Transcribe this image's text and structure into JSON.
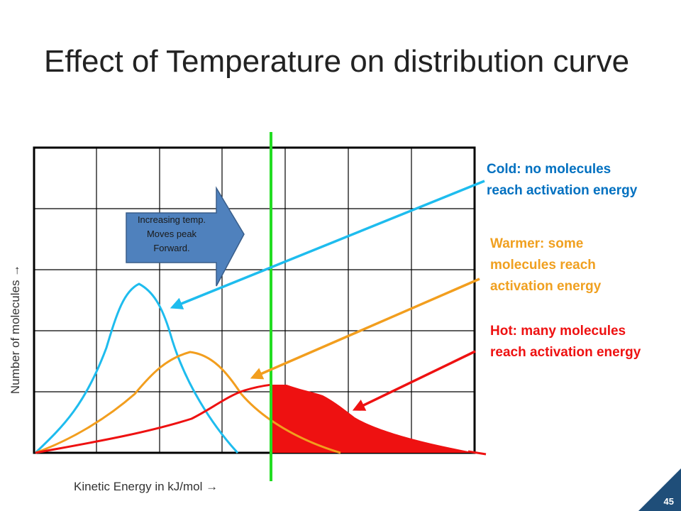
{
  "title": "Effect of Temperature on distribution curve",
  "axes": {
    "ylabel": "Number of molecules →",
    "xlabel": "Kinetic Energy in kJ/mol →"
  },
  "annotation": {
    "lines": [
      "Increasing temp.",
      "Moves peak",
      "Forward."
    ]
  },
  "callouts": {
    "cold": {
      "lines": [
        "Cold: no molecules",
        "reach activation energy"
      ],
      "color": "#0070C0"
    },
    "warmer": {
      "lines": [
        "Warmer: some",
        "molecules reach",
        "activation energy"
      ],
      "color": "#F0A020"
    },
    "hot": {
      "lines": [
        "Hot: many molecules",
        "reach activation energy"
      ],
      "color": "#EE1111"
    }
  },
  "colors": {
    "cold_curve": "#1EBCEE",
    "warm_curve": "#F29E1E",
    "hot_curve": "#EE1111",
    "activation_line": "#22DD22",
    "arrow_fill": "#4F81BD",
    "slide_badge": "#1F4E79"
  },
  "slide_number": "45"
}
